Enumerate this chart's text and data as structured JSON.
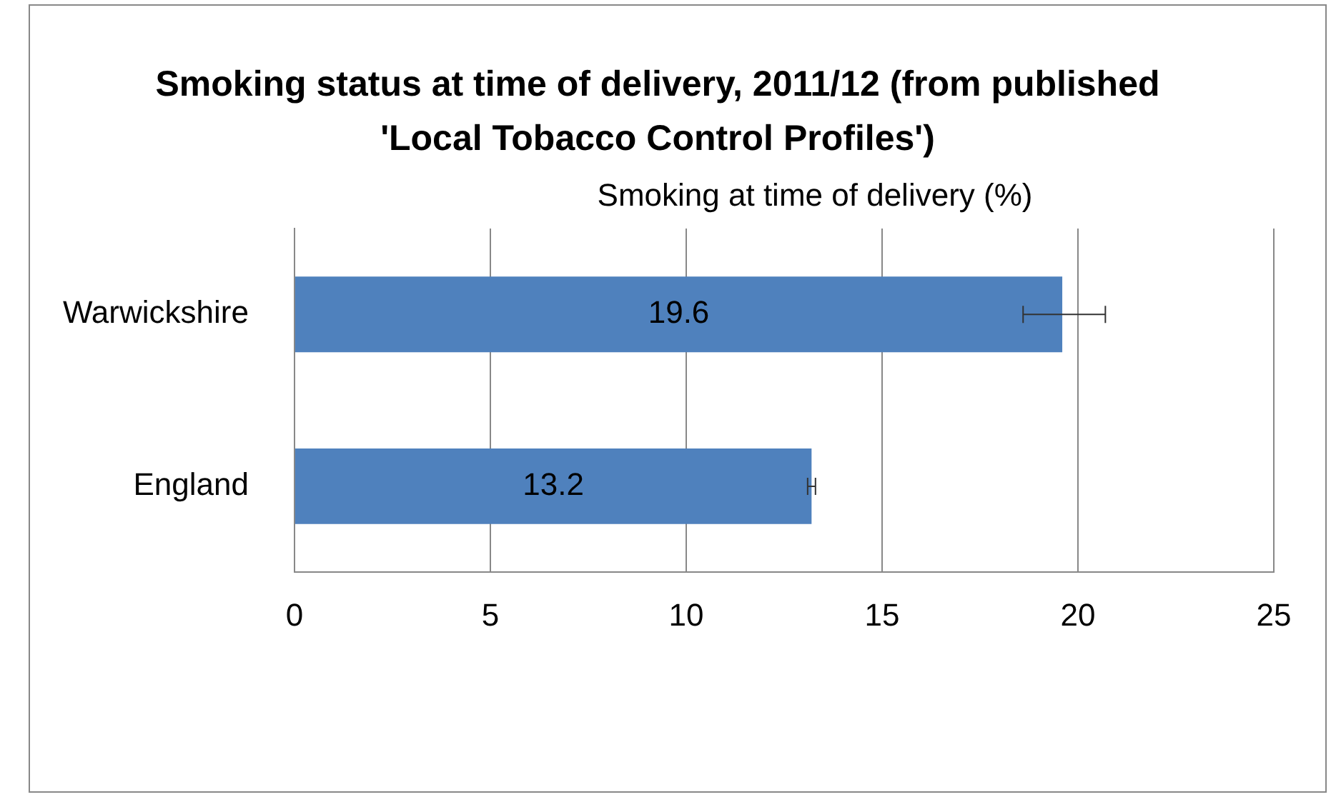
{
  "chart_data": {
    "type": "bar",
    "orientation": "horizontal",
    "title": "Smoking status at time of delivery, 2011/12 (from published 'Local Tobacco Control Profiles')",
    "xlabel": "Smoking at time of delivery (%)",
    "categories": [
      "Warwickshire",
      "England"
    ],
    "values": [
      19.6,
      13.2
    ],
    "color": "#4f81bd",
    "errors": [
      [
        18.6,
        20.7
      ],
      [
        13.1,
        13.3
      ]
    ],
    "data_labels": true,
    "xlim": [
      0,
      25
    ],
    "xticks": [
      0,
      5,
      10,
      15,
      20,
      25
    ],
    "grid": "x"
  }
}
